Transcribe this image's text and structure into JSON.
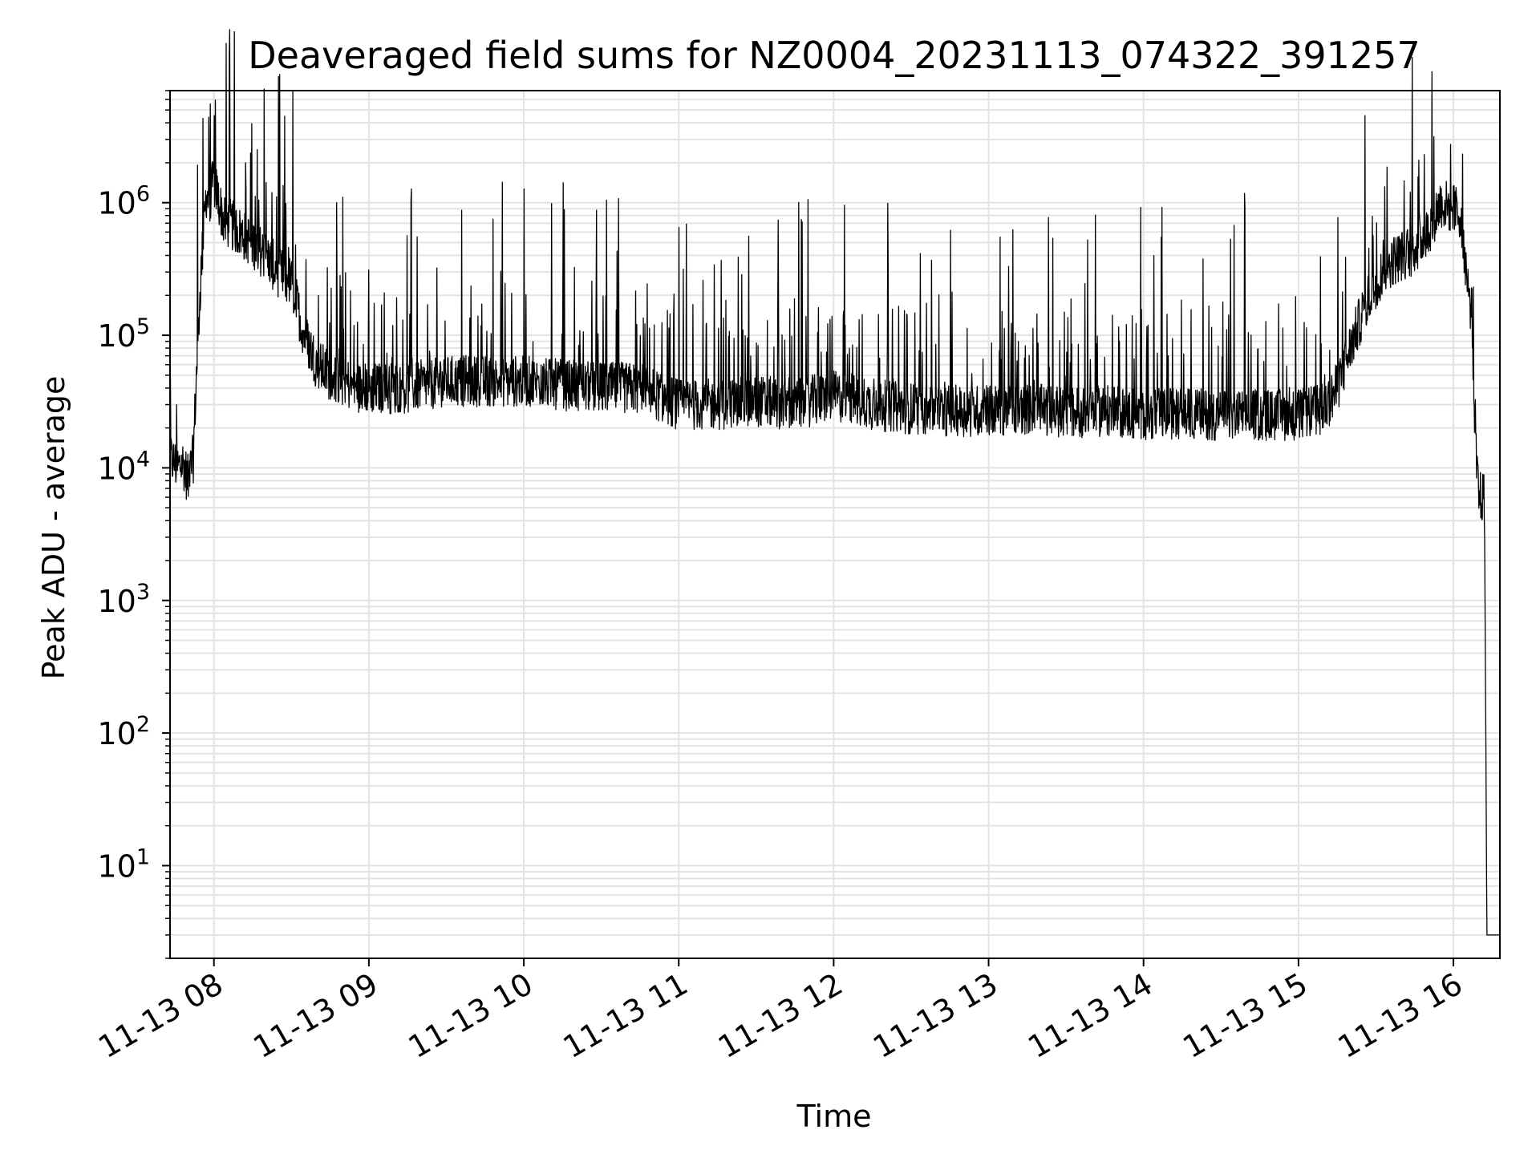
{
  "chart_data": {
    "type": "line",
    "title": "Deaveraged field sums for NZ0004_20231113_074322_391257",
    "xlabel": "Time",
    "ylabel": "Peak ADU - average",
    "y_scale": "log",
    "ylim": [
      2,
      7000000
    ],
    "xlim": [
      "2023-11-13 07:43",
      "2023-11-13 16:18"
    ],
    "grid": true,
    "x_ticks": [
      {
        "time": "2023-11-13 08:00",
        "label": "11-13 08"
      },
      {
        "time": "2023-11-13 09:00",
        "label": "11-13 09"
      },
      {
        "time": "2023-11-13 10:00",
        "label": "11-13 10"
      },
      {
        "time": "2023-11-13 11:00",
        "label": "11-13 11"
      },
      {
        "time": "2023-11-13 12:00",
        "label": "11-13 12"
      },
      {
        "time": "2023-11-13 13:00",
        "label": "11-13 13"
      },
      {
        "time": "2023-11-13 14:00",
        "label": "11-13 14"
      },
      {
        "time": "2023-11-13 15:00",
        "label": "11-13 15"
      },
      {
        "time": "2023-11-13 16:00",
        "label": "11-13 16"
      }
    ],
    "y_ticks": [
      {
        "value": 10,
        "base": "10",
        "exp": "1"
      },
      {
        "value": 100,
        "base": "10",
        "exp": "2"
      },
      {
        "value": 1000,
        "base": "10",
        "exp": "3"
      },
      {
        "value": 10000,
        "base": "10",
        "exp": "4"
      },
      {
        "value": 100000,
        "base": "10",
        "exp": "5"
      },
      {
        "value": 1000000,
        "base": "10",
        "exp": "6"
      }
    ],
    "series": [
      {
        "color": "#000000",
        "x": [
          "2023-11-13 07:43",
          "07:46",
          "07:48",
          "07:50",
          "07:52",
          "07:53",
          "07:55",
          "07:56",
          "07:57",
          "07:58",
          "08:00",
          "08:02",
          "08:04",
          "08:06",
          "08:10",
          "08:15",
          "08:20",
          "08:25",
          "08:30",
          "08:35",
          "08:40",
          "08:45",
          "08:50",
          "08:55",
          "09:00",
          "09:15",
          "09:30",
          "09:45",
          "10:00",
          "10:15",
          "10:30",
          "10:45",
          "11:00",
          "11:15",
          "11:30",
          "11:45",
          "12:00",
          "12:15",
          "12:30",
          "12:45",
          "13:00",
          "13:15",
          "13:30",
          "13:45",
          "14:00",
          "14:15",
          "14:30",
          "14:45",
          "15:00",
          "15:10",
          "15:15",
          "15:20",
          "15:25",
          "15:30",
          "15:35",
          "15:40",
          "15:45",
          "15:50",
          "15:55",
          "16:00",
          "16:03",
          "16:05",
          "16:06",
          "16:07",
          "16:08",
          "16:09",
          "16:10",
          "16:11",
          "16:12",
          "16:13",
          "16:14",
          "16:15",
          "16:18"
        ],
        "y": [
          12000,
          10000,
          11000,
          8000,
          12000,
          40000,
          300000,
          600000,
          1200000,
          1000000,
          1500000,
          1000000,
          700000,
          700000,
          600000,
          500000,
          400000,
          300000,
          250000,
          100000,
          60000,
          50000,
          45000,
          40000,
          40000,
          40000,
          45000,
          45000,
          45000,
          42000,
          40000,
          40000,
          30000,
          30000,
          32000,
          30000,
          35000,
          30000,
          28000,
          27000,
          27000,
          28000,
          26000,
          27000,
          25000,
          26000,
          25000,
          25000,
          25000,
          28000,
          40000,
          80000,
          150000,
          250000,
          350000,
          400000,
          450000,
          600000,
          1000000,
          900000,
          800000,
          300000,
          200000,
          150000,
          30000,
          10000,
          6000,
          6000,
          6000,
          3,
          3,
          3,
          3
        ]
      }
    ],
    "peak_annotations_note": ""
  }
}
